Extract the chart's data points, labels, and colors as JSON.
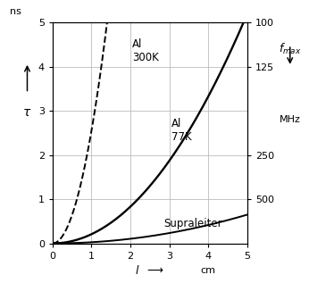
{
  "title": "",
  "xlim": [
    0,
    5
  ],
  "ylim": [
    0,
    5
  ],
  "xticks": [
    0,
    1,
    2,
    3,
    4,
    5
  ],
  "yticks": [
    0,
    1,
    2,
    3,
    4,
    5
  ],
  "yticks_right": [
    100,
    125,
    250,
    500
  ],
  "yticks_right_positions": [
    5.0,
    4.0,
    2.0,
    1.0
  ],
  "curve_color": "#000000",
  "background": "#ffffff",
  "grid_color": "#bbbbbb",
  "al300_coeff": 2.55,
  "al77_coeff": 0.208,
  "supra_coeff": 0.026,
  "al300_label": "Al\n300K",
  "al77_label": "Al\n77K",
  "supra_label": "Supraleiter"
}
